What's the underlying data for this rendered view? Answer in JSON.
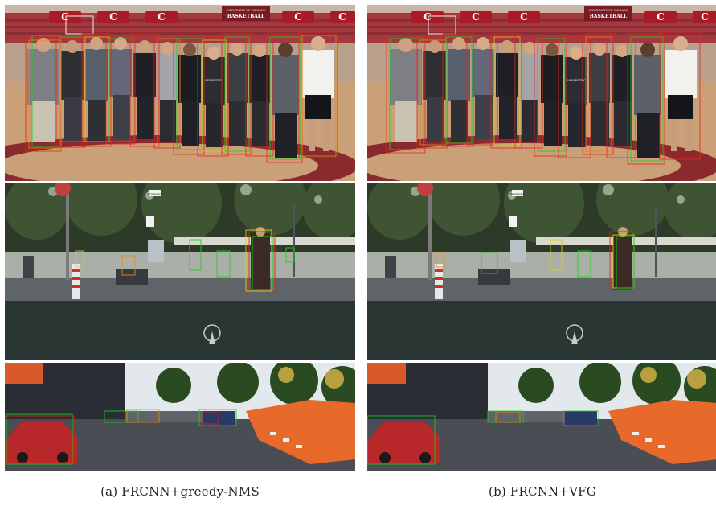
{
  "figure": {
    "captions": {
      "a": "(a) FRCNN+greedy-NMS",
      "b": "(b) FRCNN+VFG"
    },
    "scene_text": {
      "arena_banner": "BASKETBALL",
      "arena_banner_small": "UNIVERSITY OF CHICAGO",
      "shirt_text": "MINISTRY",
      "street_sign": "Brückenstr."
    },
    "box_colors": {
      "red": "#e8231c",
      "green": "#1fd11f",
      "orange": "#e88a12",
      "yellow": "#d8cf16"
    }
  }
}
